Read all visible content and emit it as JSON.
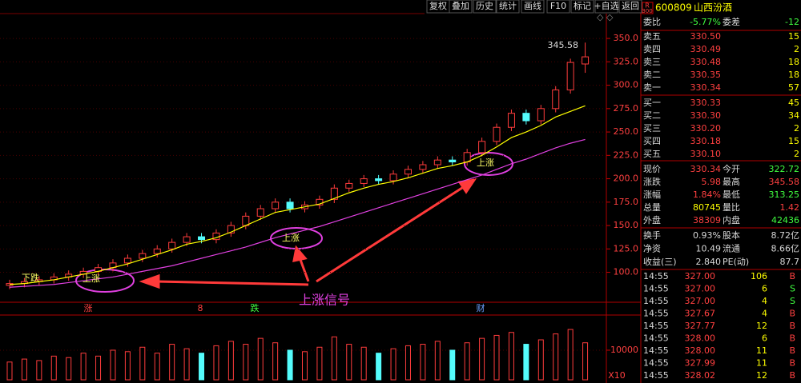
{
  "toolbar": [
    "复权",
    "叠加",
    "历史",
    "统计",
    "画线",
    "F10",
    "标记",
    "+自选",
    "返回"
  ],
  "chart_data": {
    "type": "candlestick",
    "open": [
      86,
      88,
      90,
      92,
      95,
      98,
      101,
      105,
      110,
      115,
      120,
      125,
      132,
      138,
      135,
      142,
      150,
      160,
      168,
      175,
      168,
      172,
      178,
      190,
      195,
      200,
      198,
      205,
      210,
      215,
      220,
      218,
      228,
      240,
      255,
      270,
      262,
      275,
      295,
      322.72
    ],
    "high": [
      92,
      94,
      96,
      99,
      102,
      105,
      109,
      114,
      119,
      124,
      129,
      136,
      142,
      142,
      146,
      154,
      164,
      172,
      179,
      179,
      176,
      182,
      194,
      199,
      204,
      204,
      209,
      214,
      219,
      224,
      224,
      232,
      244,
      259,
      274,
      274,
      279,
      299,
      328.36,
      345.58
    ],
    "low": [
      82,
      84,
      86,
      88,
      91,
      94,
      97,
      101,
      106,
      111,
      116,
      121,
      128,
      131,
      131,
      138,
      146,
      156,
      164,
      164,
      164,
      168,
      174,
      186,
      191,
      194,
      194,
      201,
      206,
      211,
      214,
      214,
      224,
      236,
      251,
      258,
      258,
      271,
      291,
      313.25
    ],
    "close": [
      88,
      90,
      92,
      95,
      98,
      101,
      105,
      110,
      115,
      120,
      125,
      132,
      138,
      135,
      142,
      150,
      160,
      168,
      175,
      168,
      172,
      178,
      190,
      195,
      200,
      198,
      205,
      210,
      215,
      220,
      218,
      228,
      240,
      255,
      270,
      262,
      275,
      295,
      324.36,
      330.34
    ],
    "up_color": "#ff3c3c",
    "down_color": "#54fcfc",
    "moving_averages": [
      {
        "color": "#ffff00",
        "values": [
          87,
          88,
          90,
          92,
          95,
          98,
          101,
          105,
          109,
          114,
          119,
          124,
          130,
          133,
          137,
          143,
          150,
          157,
          164,
          167,
          170,
          173,
          179,
          185,
          190,
          194,
          197,
          201,
          206,
          211,
          214,
          218,
          225,
          234,
          244,
          250,
          257,
          266,
          272,
          278
        ]
      },
      {
        "color": "#e040e0",
        "values": [
          84,
          85,
          86,
          87,
          89,
          91,
          93,
          95,
          98,
          101,
          104,
          107,
          111,
          115,
          119,
          123,
          127,
          132,
          137,
          141,
          145,
          149,
          154,
          159,
          164,
          169,
          174,
          179,
          184,
          189,
          194,
          199,
          204,
          210,
          216,
          221,
          227,
          233,
          238,
          242
        ]
      }
    ],
    "ylim": [
      68,
      374
    ],
    "yticks": [
      {
        "value": 100,
        "label": "100.0"
      },
      {
        "value": 125,
        "label": "125.0"
      },
      {
        "value": 150,
        "label": "150.0"
      },
      {
        "value": 175,
        "label": "175.0"
      },
      {
        "value": 200,
        "label": "200.0"
      },
      {
        "value": 225,
        "label": "225.0"
      },
      {
        "value": 250,
        "label": "250.0"
      },
      {
        "value": 275,
        "label": "275.0"
      },
      {
        "value": 300,
        "label": "300.0"
      },
      {
        "value": 325,
        "label": "325.0"
      },
      {
        "value": 350,
        "label": "350.0"
      }
    ],
    "grid": true,
    "high_label": "345.58",
    "annotations": [
      "下跌",
      "上涨",
      "上涨",
      "上涨",
      "上涨信号"
    ],
    "events": [
      "涨",
      "8",
      "跌",
      "财"
    ],
    "volume": {
      "values": [
        6000,
        7000,
        6500,
        8000,
        7500,
        9000,
        8000,
        10000,
        9500,
        11000,
        9000,
        12000,
        10500,
        9000,
        11500,
        13000,
        12000,
        14000,
        12500,
        10000,
        9500,
        11000,
        14500,
        12000,
        11000,
        9000,
        10500,
        11500,
        12000,
        13000,
        10000,
        12500,
        14000,
        15000,
        16000,
        12000,
        13500,
        15500,
        17000,
        12500
      ],
      "ylim": [
        0,
        21600
      ],
      "yticks": [
        10000
      ],
      "unit_label": "X10"
    }
  },
  "quote": {
    "badge": [
      "R",
      "300"
    ],
    "code": "600809",
    "name": "山西汾酒",
    "ratio_row": [
      "委比",
      "-5.77%",
      "委差",
      "-12"
    ],
    "asks": [
      [
        "卖五",
        "330.50",
        "15"
      ],
      [
        "卖四",
        "330.49",
        "2"
      ],
      [
        "卖三",
        "330.48",
        "18"
      ],
      [
        "卖二",
        "330.35",
        "18"
      ],
      [
        "卖一",
        "330.34",
        "57"
      ]
    ],
    "bids": [
      [
        "买一",
        "330.33",
        "45"
      ],
      [
        "买二",
        "330.30",
        "34"
      ],
      [
        "买三",
        "330.20",
        "2"
      ],
      [
        "买四",
        "330.18",
        "15"
      ],
      [
        "买五",
        "330.10",
        "2"
      ]
    ],
    "stats": [
      [
        "现价",
        "330.34",
        "今开",
        "322.72"
      ],
      [
        "涨跌",
        "5.98",
        "最高",
        "345.58"
      ],
      [
        "涨幅",
        "1.84%",
        "最低",
        "313.25"
      ],
      [
        "总量",
        "80745",
        "量比",
        "1.42"
      ],
      [
        "外盘",
        "38309",
        "内盘",
        "42436"
      ]
    ],
    "fundamentals": [
      [
        "换手",
        "0.93%",
        "股本",
        "8.72亿"
      ],
      [
        "净资",
        "10.49",
        "流通",
        "8.66亿"
      ],
      [
        "收益(三)",
        "2.840",
        "PE(动)",
        "87.7"
      ]
    ],
    "trades": [
      [
        "14:55",
        "327.00",
        "106",
        "B"
      ],
      [
        "14:55",
        "327.00",
        "6",
        "S"
      ],
      [
        "14:55",
        "327.00",
        "4",
        "S"
      ],
      [
        "14:55",
        "327.67",
        "4",
        "B"
      ],
      [
        "14:55",
        "327.77",
        "12",
        "B"
      ],
      [
        "14:55",
        "328.00",
        "6",
        "B"
      ],
      [
        "14:55",
        "328.00",
        "11",
        "B"
      ],
      [
        "14:55",
        "327.99",
        "11",
        "B"
      ],
      [
        "14:55",
        "328.02",
        "12",
        "B"
      ]
    ]
  }
}
